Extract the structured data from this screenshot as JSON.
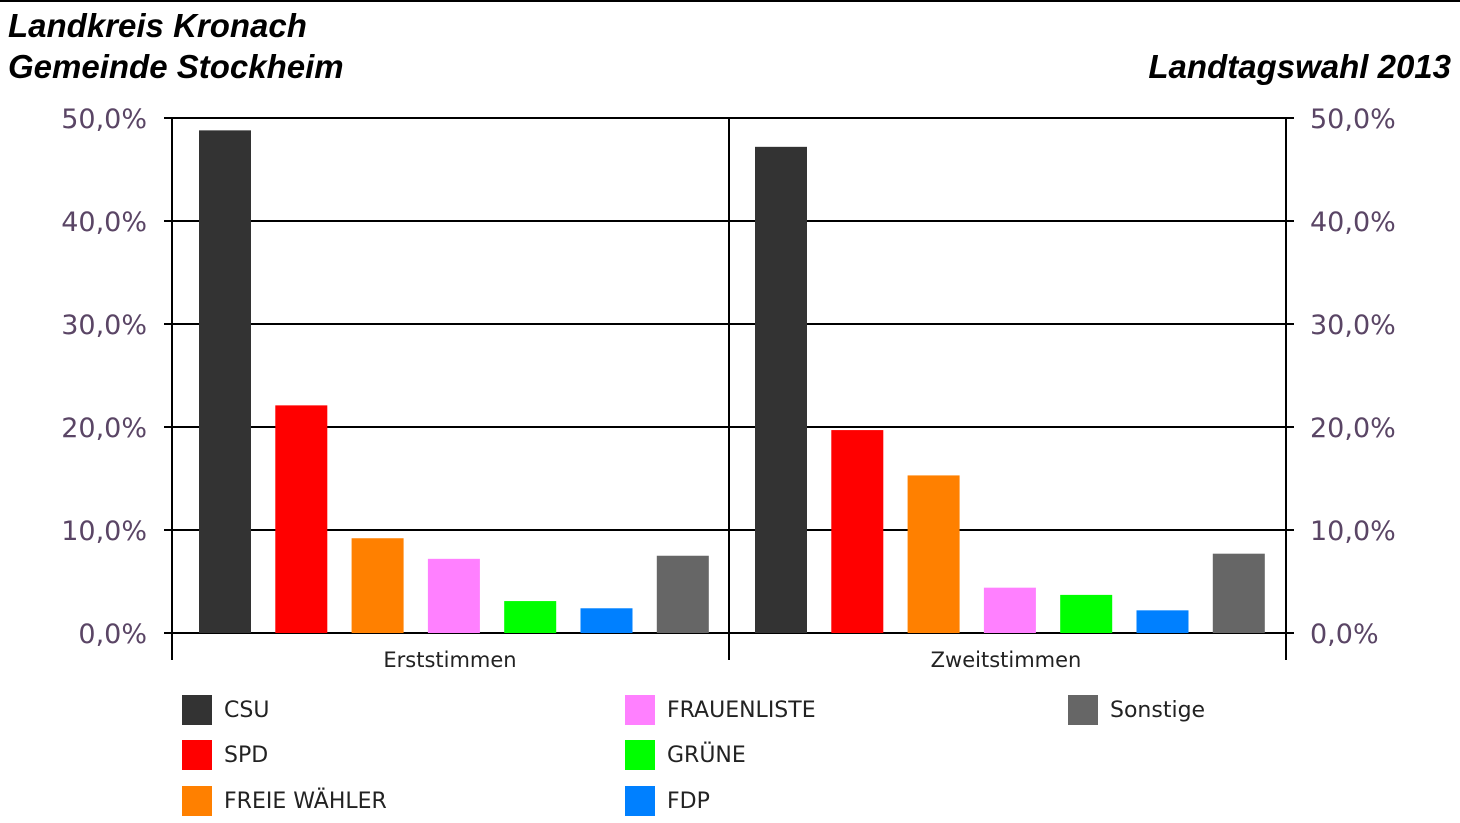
{
  "header": {
    "line1": "Landkreis Kronach",
    "line2": "Gemeinde Stockheim",
    "right": "Landtagswahl 2013"
  },
  "chart_data": {
    "type": "bar",
    "categories": [
      "Erststimmen",
      "Zweitstimmen"
    ],
    "series": [
      {
        "name": "CSU",
        "color": "#333333",
        "values": [
          48.8,
          47.2
        ]
      },
      {
        "name": "SPD",
        "color": "#ff0000",
        "values": [
          22.1,
          19.7
        ]
      },
      {
        "name": "FREIE WÄHLER",
        "color": "#ff8000",
        "values": [
          9.2,
          15.3
        ]
      },
      {
        "name": "FRAUENLISTE",
        "color": "#ff80ff",
        "values": [
          7.2,
          4.4
        ]
      },
      {
        "name": "GRÜNE",
        "color": "#00ff00",
        "values": [
          3.1,
          3.7
        ]
      },
      {
        "name": "FDP",
        "color": "#0080ff",
        "values": [
          2.4,
          2.2
        ]
      },
      {
        "name": "Sonstige",
        "color": "#666666",
        "values": [
          7.5,
          7.7
        ]
      }
    ],
    "yticks": [
      "0,0%",
      "10,0%",
      "20,0%",
      "30,0%",
      "40,0%",
      "50,0%"
    ],
    "ylim": [
      0,
      50
    ],
    "grid": true,
    "legend_position": "bottom"
  }
}
